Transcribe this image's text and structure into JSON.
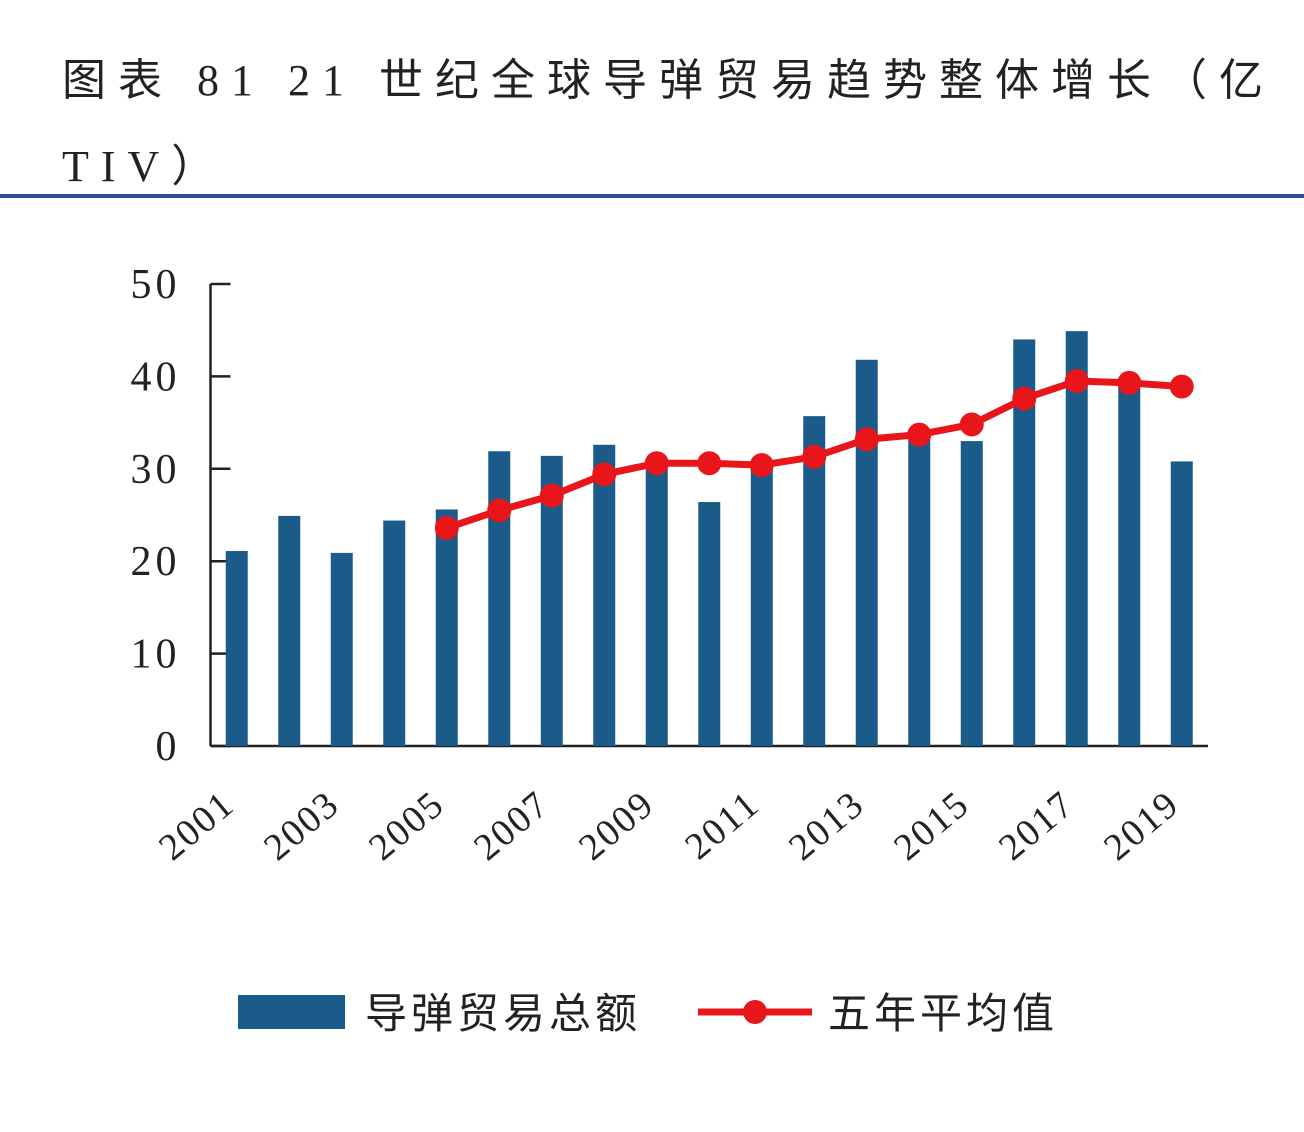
{
  "chart_data": {
    "type": "bar",
    "title": "图表 81 21 世纪全球导弹贸易趋势整体增长（亿TIV）",
    "categories": [
      "2001",
      null,
      "2003",
      null,
      "2005",
      null,
      "2007",
      null,
      "2009",
      null,
      "2011",
      null,
      "2013",
      null,
      "2015",
      null,
      "2017",
      null,
      "2019"
    ],
    "series": [
      {
        "name": "导弹贸易总额",
        "type": "bar",
        "color": "#1a5b8a",
        "values": [
          21.1,
          24.9,
          20.9,
          24.4,
          25.6,
          31.9,
          31.4,
          32.6,
          30.8,
          26.4,
          30.3,
          35.7,
          41.8,
          33.5,
          33.0,
          44.0,
          44.9,
          38.8,
          30.8
        ]
      },
      {
        "name": "五年平均值",
        "type": "line",
        "color": "#e8161b",
        "values": [
          null,
          null,
          null,
          null,
          23.6,
          25.5,
          27.1,
          29.4,
          30.6,
          30.6,
          30.4,
          31.3,
          33.2,
          33.7,
          34.8,
          37.6,
          39.5,
          39.3,
          38.9
        ]
      }
    ],
    "ylim": [
      0,
      50
    ],
    "yticks": [
      0,
      10,
      20,
      30,
      40,
      50
    ]
  }
}
